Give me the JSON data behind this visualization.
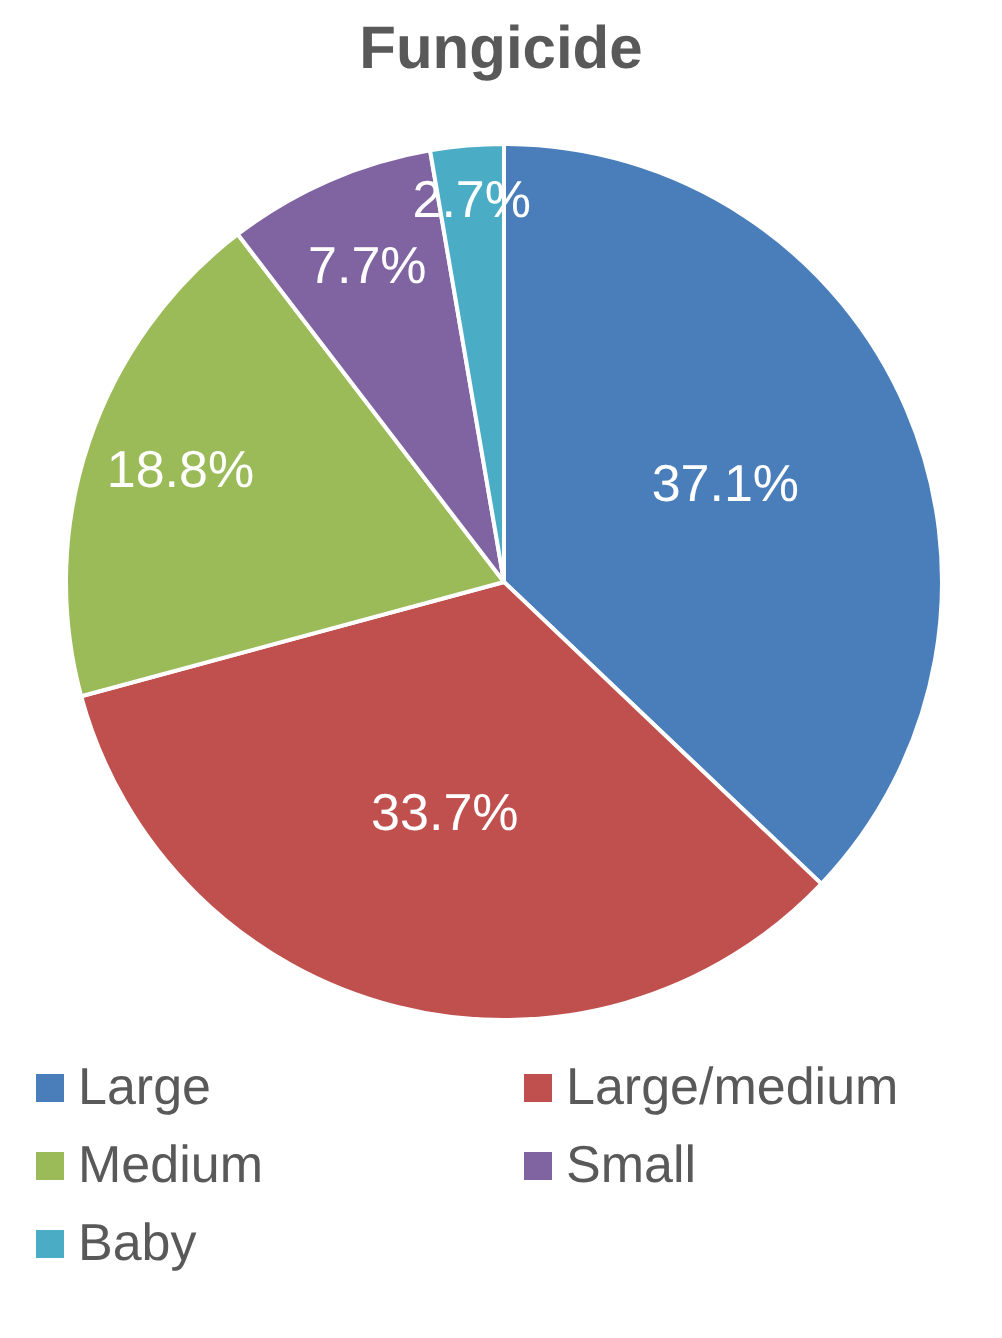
{
  "chart_data": {
    "type": "pie",
    "title": "Fungicide",
    "categories": [
      "Large",
      "Large/medium",
      "Medium",
      "Small",
      "Baby"
    ],
    "values": [
      37.1,
      33.7,
      18.8,
      7.7,
      2.7
    ],
    "colors": [
      "#4a7ebb",
      "#c0504d",
      "#9bbb59",
      "#8064a2",
      "#4bacc6"
    ],
    "value_labels": [
      "37.1%",
      "33.7%",
      "18.8%",
      "7.7%",
      "2.7%"
    ],
    "legend": "bottom"
  }
}
